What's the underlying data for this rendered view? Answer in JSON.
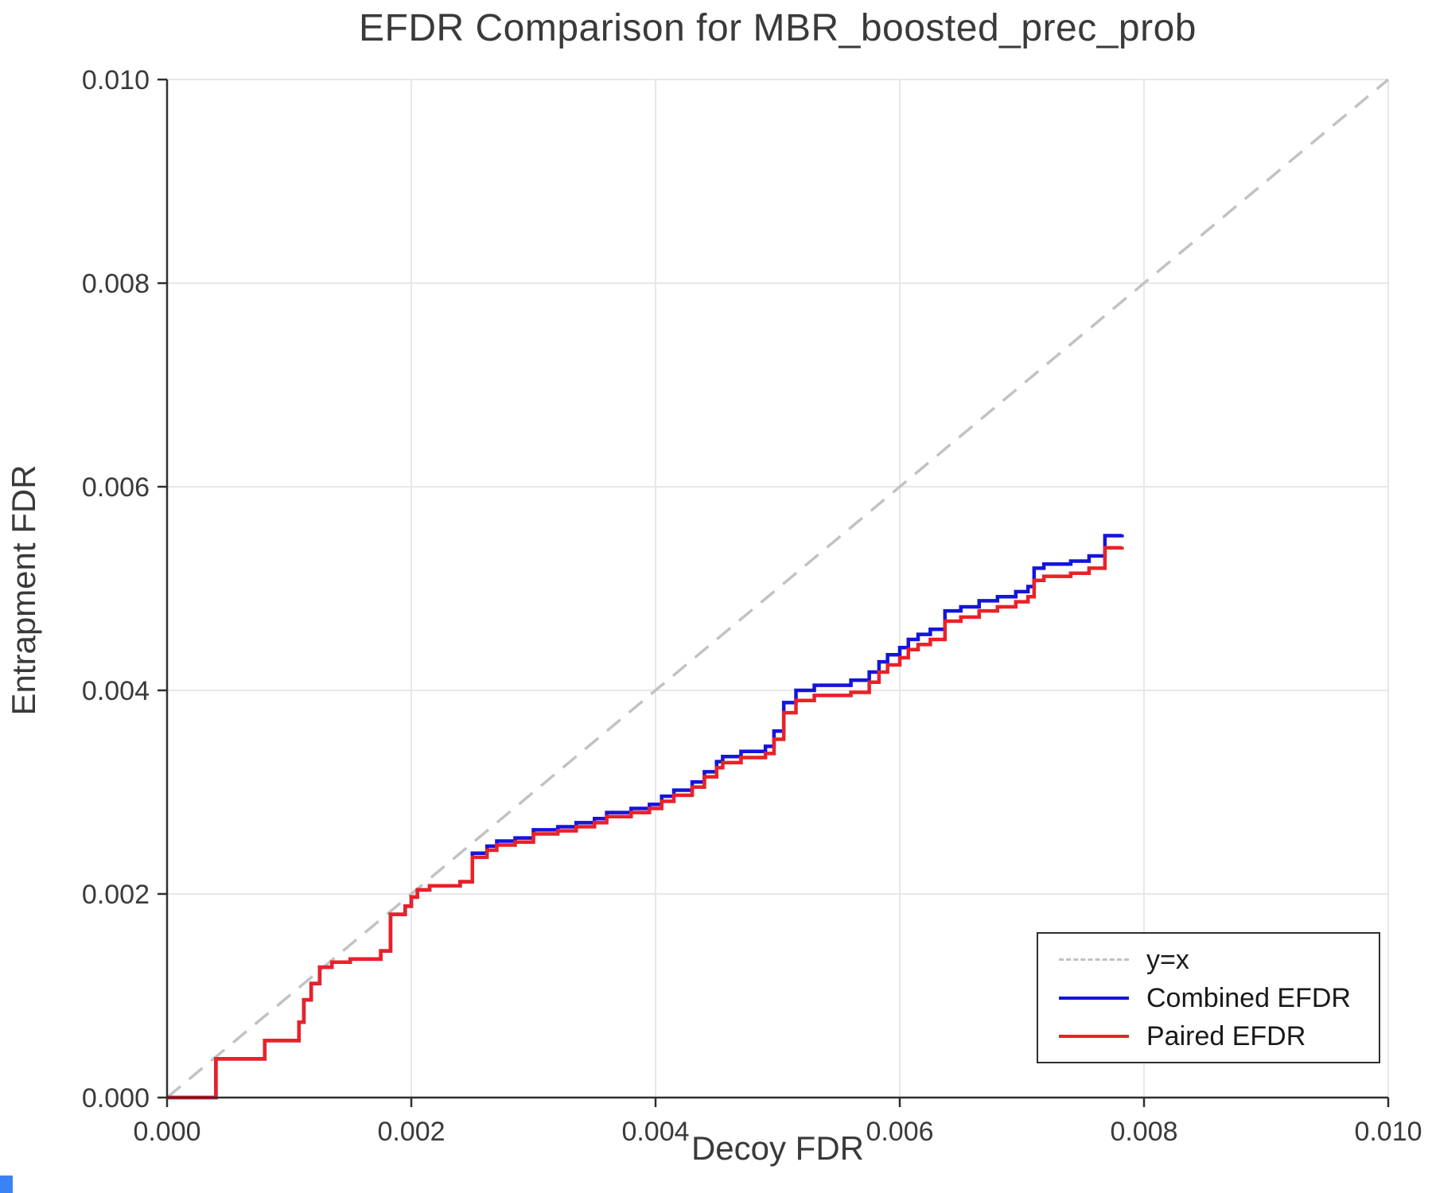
{
  "chart_data": {
    "type": "line",
    "title": "EFDR Comparison for MBR_boosted_prec_prob",
    "xlabel": "Decoy FDR",
    "ylabel": "Entrapment FDR",
    "xlim": [
      0.0,
      0.01
    ],
    "ylim": [
      0.0,
      0.01
    ],
    "grid": true,
    "legend_position": "lower right",
    "xticks": [
      0.0,
      0.002,
      0.004,
      0.006,
      0.008,
      0.01
    ],
    "xtick_labels": [
      "0.000",
      "0.002",
      "0.004",
      "0.006",
      "0.008",
      "0.010"
    ],
    "yticks": [
      0.0,
      0.002,
      0.004,
      0.006,
      0.008,
      0.01
    ],
    "ytick_labels": [
      "0.000",
      "0.002",
      "0.004",
      "0.006",
      "0.008",
      "0.010"
    ],
    "reference_line": {
      "label": "y=x",
      "style": "dashed",
      "color": "#c2c2c2",
      "from": [
        0.0,
        0.0
      ],
      "to": [
        0.01,
        0.01
      ]
    },
    "series": [
      {
        "name": "Combined EFDR",
        "color": "#1414dc",
        "step": "post",
        "points": [
          [
            0.0,
            0.0
          ],
          [
            0.0004,
            0.00038
          ],
          [
            0.0008,
            0.00056
          ],
          [
            0.00108,
            0.00074
          ],
          [
            0.00112,
            0.00096
          ],
          [
            0.00118,
            0.00112
          ],
          [
            0.00125,
            0.00128
          ],
          [
            0.00135,
            0.00133
          ],
          [
            0.0015,
            0.00136
          ],
          [
            0.00175,
            0.00144
          ],
          [
            0.00183,
            0.0018
          ],
          [
            0.00195,
            0.00188
          ],
          [
            0.002,
            0.00197
          ],
          [
            0.00205,
            0.00204
          ],
          [
            0.00215,
            0.00208
          ],
          [
            0.0024,
            0.00212
          ],
          [
            0.0025,
            0.0024
          ],
          [
            0.00262,
            0.00247
          ],
          [
            0.0027,
            0.00252
          ],
          [
            0.00285,
            0.00255
          ],
          [
            0.003,
            0.00263
          ],
          [
            0.0032,
            0.00266
          ],
          [
            0.00335,
            0.0027
          ],
          [
            0.0035,
            0.00274
          ],
          [
            0.0036,
            0.0028
          ],
          [
            0.0038,
            0.00284
          ],
          [
            0.00395,
            0.00288
          ],
          [
            0.00405,
            0.00296
          ],
          [
            0.00415,
            0.00302
          ],
          [
            0.0043,
            0.0031
          ],
          [
            0.0044,
            0.0032
          ],
          [
            0.0045,
            0.0033
          ],
          [
            0.00455,
            0.00335
          ],
          [
            0.0047,
            0.0034
          ],
          [
            0.0049,
            0.00345
          ],
          [
            0.00497,
            0.0036
          ],
          [
            0.00505,
            0.00388
          ],
          [
            0.00515,
            0.004
          ],
          [
            0.0053,
            0.00405
          ],
          [
            0.0056,
            0.0041
          ],
          [
            0.00575,
            0.00418
          ],
          [
            0.00583,
            0.00428
          ],
          [
            0.0059,
            0.00435
          ],
          [
            0.006,
            0.00442
          ],
          [
            0.00607,
            0.0045
          ],
          [
            0.00615,
            0.00455
          ],
          [
            0.00625,
            0.0046
          ],
          [
            0.00637,
            0.00478
          ],
          [
            0.0065,
            0.00482
          ],
          [
            0.00665,
            0.00488
          ],
          [
            0.0068,
            0.00492
          ],
          [
            0.00695,
            0.00497
          ],
          [
            0.00705,
            0.00502
          ],
          [
            0.0071,
            0.0052
          ],
          [
            0.00718,
            0.00524
          ],
          [
            0.0074,
            0.00527
          ],
          [
            0.00755,
            0.00532
          ],
          [
            0.00768,
            0.00552
          ],
          [
            0.00782,
            0.00553
          ]
        ]
      },
      {
        "name": "Paired EFDR",
        "color": "#ea2127",
        "step": "post",
        "points": [
          [
            0.0,
            0.0
          ],
          [
            0.0004,
            0.00038
          ],
          [
            0.0008,
            0.00056
          ],
          [
            0.00108,
            0.00074
          ],
          [
            0.00112,
            0.00096
          ],
          [
            0.00118,
            0.00112
          ],
          [
            0.00125,
            0.00128
          ],
          [
            0.00135,
            0.00133
          ],
          [
            0.0015,
            0.00136
          ],
          [
            0.00175,
            0.00144
          ],
          [
            0.00183,
            0.0018
          ],
          [
            0.00195,
            0.00188
          ],
          [
            0.002,
            0.00197
          ],
          [
            0.00205,
            0.00204
          ],
          [
            0.00215,
            0.00208
          ],
          [
            0.0024,
            0.00212
          ],
          [
            0.0025,
            0.00236
          ],
          [
            0.00262,
            0.00243
          ],
          [
            0.0027,
            0.00248
          ],
          [
            0.00285,
            0.00251
          ],
          [
            0.003,
            0.00259
          ],
          [
            0.0032,
            0.00262
          ],
          [
            0.00335,
            0.00266
          ],
          [
            0.0035,
            0.0027
          ],
          [
            0.0036,
            0.00276
          ],
          [
            0.0038,
            0.0028
          ],
          [
            0.00395,
            0.00284
          ],
          [
            0.00405,
            0.00291
          ],
          [
            0.00415,
            0.00297
          ],
          [
            0.0043,
            0.00305
          ],
          [
            0.0044,
            0.00315
          ],
          [
            0.0045,
            0.00324
          ],
          [
            0.00455,
            0.00329
          ],
          [
            0.0047,
            0.00334
          ],
          [
            0.0049,
            0.00338
          ],
          [
            0.00497,
            0.00352
          ],
          [
            0.00505,
            0.00378
          ],
          [
            0.00515,
            0.0039
          ],
          [
            0.0053,
            0.00395
          ],
          [
            0.0056,
            0.00398
          ],
          [
            0.00575,
            0.00408
          ],
          [
            0.00583,
            0.00418
          ],
          [
            0.0059,
            0.00425
          ],
          [
            0.006,
            0.00432
          ],
          [
            0.00607,
            0.0044
          ],
          [
            0.00615,
            0.00445
          ],
          [
            0.00625,
            0.0045
          ],
          [
            0.00637,
            0.00468
          ],
          [
            0.0065,
            0.00472
          ],
          [
            0.00665,
            0.00478
          ],
          [
            0.0068,
            0.00482
          ],
          [
            0.00695,
            0.00487
          ],
          [
            0.00705,
            0.00492
          ],
          [
            0.0071,
            0.00508
          ],
          [
            0.00718,
            0.00512
          ],
          [
            0.0074,
            0.00515
          ],
          [
            0.00755,
            0.0052
          ],
          [
            0.00768,
            0.0054
          ],
          [
            0.00782,
            0.00541
          ]
        ]
      }
    ]
  },
  "legend": {
    "items": [
      {
        "label": "y=x"
      },
      {
        "label": "Combined EFDR"
      },
      {
        "label": "Paired EFDR"
      }
    ]
  }
}
